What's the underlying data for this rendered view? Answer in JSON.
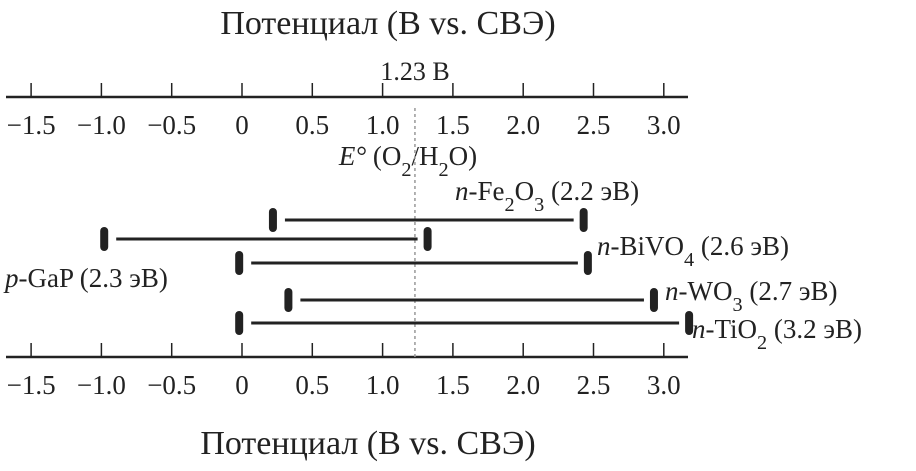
{
  "chart_data": {
    "type": "range-bar",
    "title_top": "Потенциал (В vs. СВЭ)",
    "title_bottom": "Потенциал (В vs. СВЭ)",
    "xlim": [
      -1.6,
      3.2
    ],
    "ticks": [
      -1.5,
      -1.0,
      -0.5,
      0,
      0.5,
      1.0,
      1.5,
      2.0,
      2.5,
      3.0
    ],
    "tick_labels": [
      "−1.5",
      "−1.0",
      "−0.5",
      "0",
      "0.5",
      "1.0",
      "1.5",
      "2.0",
      "2.5",
      "3.0"
    ],
    "reference": {
      "value": 1.23,
      "label": "1.23 В",
      "name_prefix": "E°",
      "name_rest": "(O2/H2O)"
    },
    "series": [
      {
        "type": "n",
        "material": "Fe2O3",
        "gap": "(2.2 эВ)",
        "start": 0.22,
        "end": 2.43
      },
      {
        "type": "p",
        "material": "GaP",
        "gap": "(2.3 эВ)",
        "start": -0.98,
        "end": 1.32
      },
      {
        "type": "n",
        "material": "BiVO4",
        "gap": "(2.6 эВ)",
        "start": -0.02,
        "end": 2.46
      },
      {
        "type": "n",
        "material": "WO3",
        "gap": "(2.7 эВ)",
        "start": 0.33,
        "end": 2.93
      },
      {
        "type": "n",
        "material": "TiO2",
        "gap": "(3.2 эВ)",
        "start": -0.02,
        "end": 3.18
      }
    ],
    "colors": {
      "line": "#222222",
      "reference": "#999999"
    }
  }
}
